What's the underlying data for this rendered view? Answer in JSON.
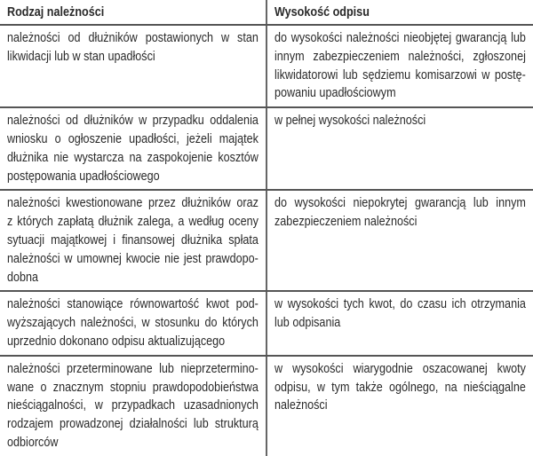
{
  "table": {
    "headers": [
      "Rodzaj należności",
      "Wysokość odpisu"
    ],
    "rows": [
      {
        "type": [
          "należności od dłużników postawionych w stan",
          "likwidacji lub w stan upadłości"
        ],
        "amount": [
          "do wysokości należności nieobjętej gwarancją lub",
          "innym zabezpieczeniem należności, zgłoszonej",
          "likwidatorowi lub sędziemu komisarzowi w postę-",
          "powaniu upadłościowym"
        ]
      },
      {
        "type": [
          "należności od dłużników w przypadku oddalenia",
          "wniosku o ogłoszenie upadłości, jeżeli majątek",
          "dłużnika nie wystarcza na zaspokojenie kosztów",
          "postępowania upadłościowego"
        ],
        "amount": [
          "w pełnej wysokości należności"
        ]
      },
      {
        "type": [
          "należności kwestionowane przez dłużników oraz",
          "z których zapłatą dłużnik zalega, a według oceny",
          "sytuacji majątkowej i finansowej dłużnika spłata",
          "należności w umownej kwocie nie jest prawdopo-",
          "dobna"
        ],
        "amount": [
          "do wysokości niepokrytej gwarancją lub innym",
          "zabezpieczeniem należności"
        ]
      },
      {
        "type": [
          "należności stanowiące równowartość kwot pod-",
          "wyższających należności, w stosunku do których",
          "uprzednio dokonano odpisu aktualizującego"
        ],
        "amount": [
          "w wysokości tych kwot, do czasu ich otrzymania",
          "lub odpisania"
        ]
      },
      {
        "type": [
          "należności przeterminowane lub nieprzetermino-",
          "wane o znacznym stopniu prawdopodobieństwa",
          "nieściągalności, w przypadkach uzasadnionych",
          "rodzajem prowadzonej działalności lub strukturą",
          "odbiorców"
        ],
        "amount": [
          "w wysokości wiarygodnie oszacowanej kwoty",
          "odpisu, w tym także ogólnego, na nieściągalne",
          "należności"
        ]
      }
    ]
  }
}
